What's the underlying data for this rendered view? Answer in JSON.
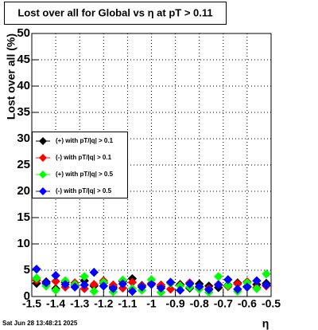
{
  "chart_data": {
    "type": "scatter",
    "title": "Lost over all for Global vs    η at pT > 0.11",
    "x_label": "η",
    "y_label": "Lost over all (%)",
    "footer": "Sat Jun 28 13:48:21 2025",
    "x": [
      -1.48,
      -1.44,
      -1.4,
      -1.36,
      -1.32,
      -1.28,
      -1.24,
      -1.2,
      -1.16,
      -1.12,
      -1.08,
      -1.04,
      -1.0,
      -0.96,
      -0.92,
      -0.88,
      -0.84,
      -0.8,
      -0.76,
      -0.72,
      -0.68,
      -0.64,
      -0.6,
      -0.56,
      -0.52
    ],
    "series": [
      {
        "name": "(+) with pT/|q| > 0.1",
        "color": "#000000",
        "values": [
          2.5,
          2.8,
          1.5,
          2.7,
          2.2,
          3.0,
          2.0,
          2.6,
          1.8,
          2.9,
          3.4,
          2.1,
          2.5,
          1.9,
          2.7,
          2.3,
          1.6,
          2.4,
          2.0,
          1.7,
          2.2,
          2.6,
          1.9,
          2.3,
          2.5
        ]
      },
      {
        "name": "(-) with pT/|q| > 0.1",
        "color": "#ff0000",
        "values": [
          3.1,
          2.4,
          2.9,
          1.8,
          2.6,
          1.5,
          2.3,
          3.0,
          2.2,
          1.6,
          2.7,
          2.0,
          2.5,
          2.2,
          1.4,
          2.1,
          2.6,
          1.8,
          1.5,
          2.3,
          1.9,
          2.4,
          2.8,
          1.7,
          2.0
        ]
      },
      {
        "name": "(+) with pT/|q| > 0.5",
        "color": "#00ff00",
        "values": [
          3.5,
          2.0,
          1.2,
          3.0,
          2.3,
          3.8,
          1.0,
          2.7,
          0.9,
          3.1,
          1.5,
          1.2,
          3.2,
          0.8,
          2.5,
          2.0,
          1.8,
          1.4,
          0.8,
          3.8,
          2.1,
          1.0,
          2.6,
          1.5,
          4.3
        ]
      },
      {
        "name": "(-) with pT/|q| > 0.5",
        "color": "#0000ff",
        "values": [
          5.2,
          2.6,
          4.0,
          2.3,
          1.8,
          2.2,
          4.6,
          2.0,
          1.5,
          2.4,
          1.0,
          1.8,
          2.3,
          1.6,
          2.7,
          1.2,
          2.4,
          1.9,
          1.3,
          2.2,
          3.2,
          1.4,
          1.8,
          3.0,
          2.2
        ]
      }
    ],
    "xlim": [
      -1.5,
      -0.5
    ],
    "xticks": [
      -1.5,
      -1.4,
      -1.3,
      -1.2,
      -1.1,
      -1,
      -0.9,
      -0.8,
      -0.7,
      -0.6,
      -0.5
    ],
    "ylim": [
      0,
      50
    ],
    "yticks": [
      0,
      5,
      10,
      15,
      20,
      25,
      30,
      35,
      40,
      45,
      50
    ],
    "grid": true,
    "legend": "left"
  }
}
